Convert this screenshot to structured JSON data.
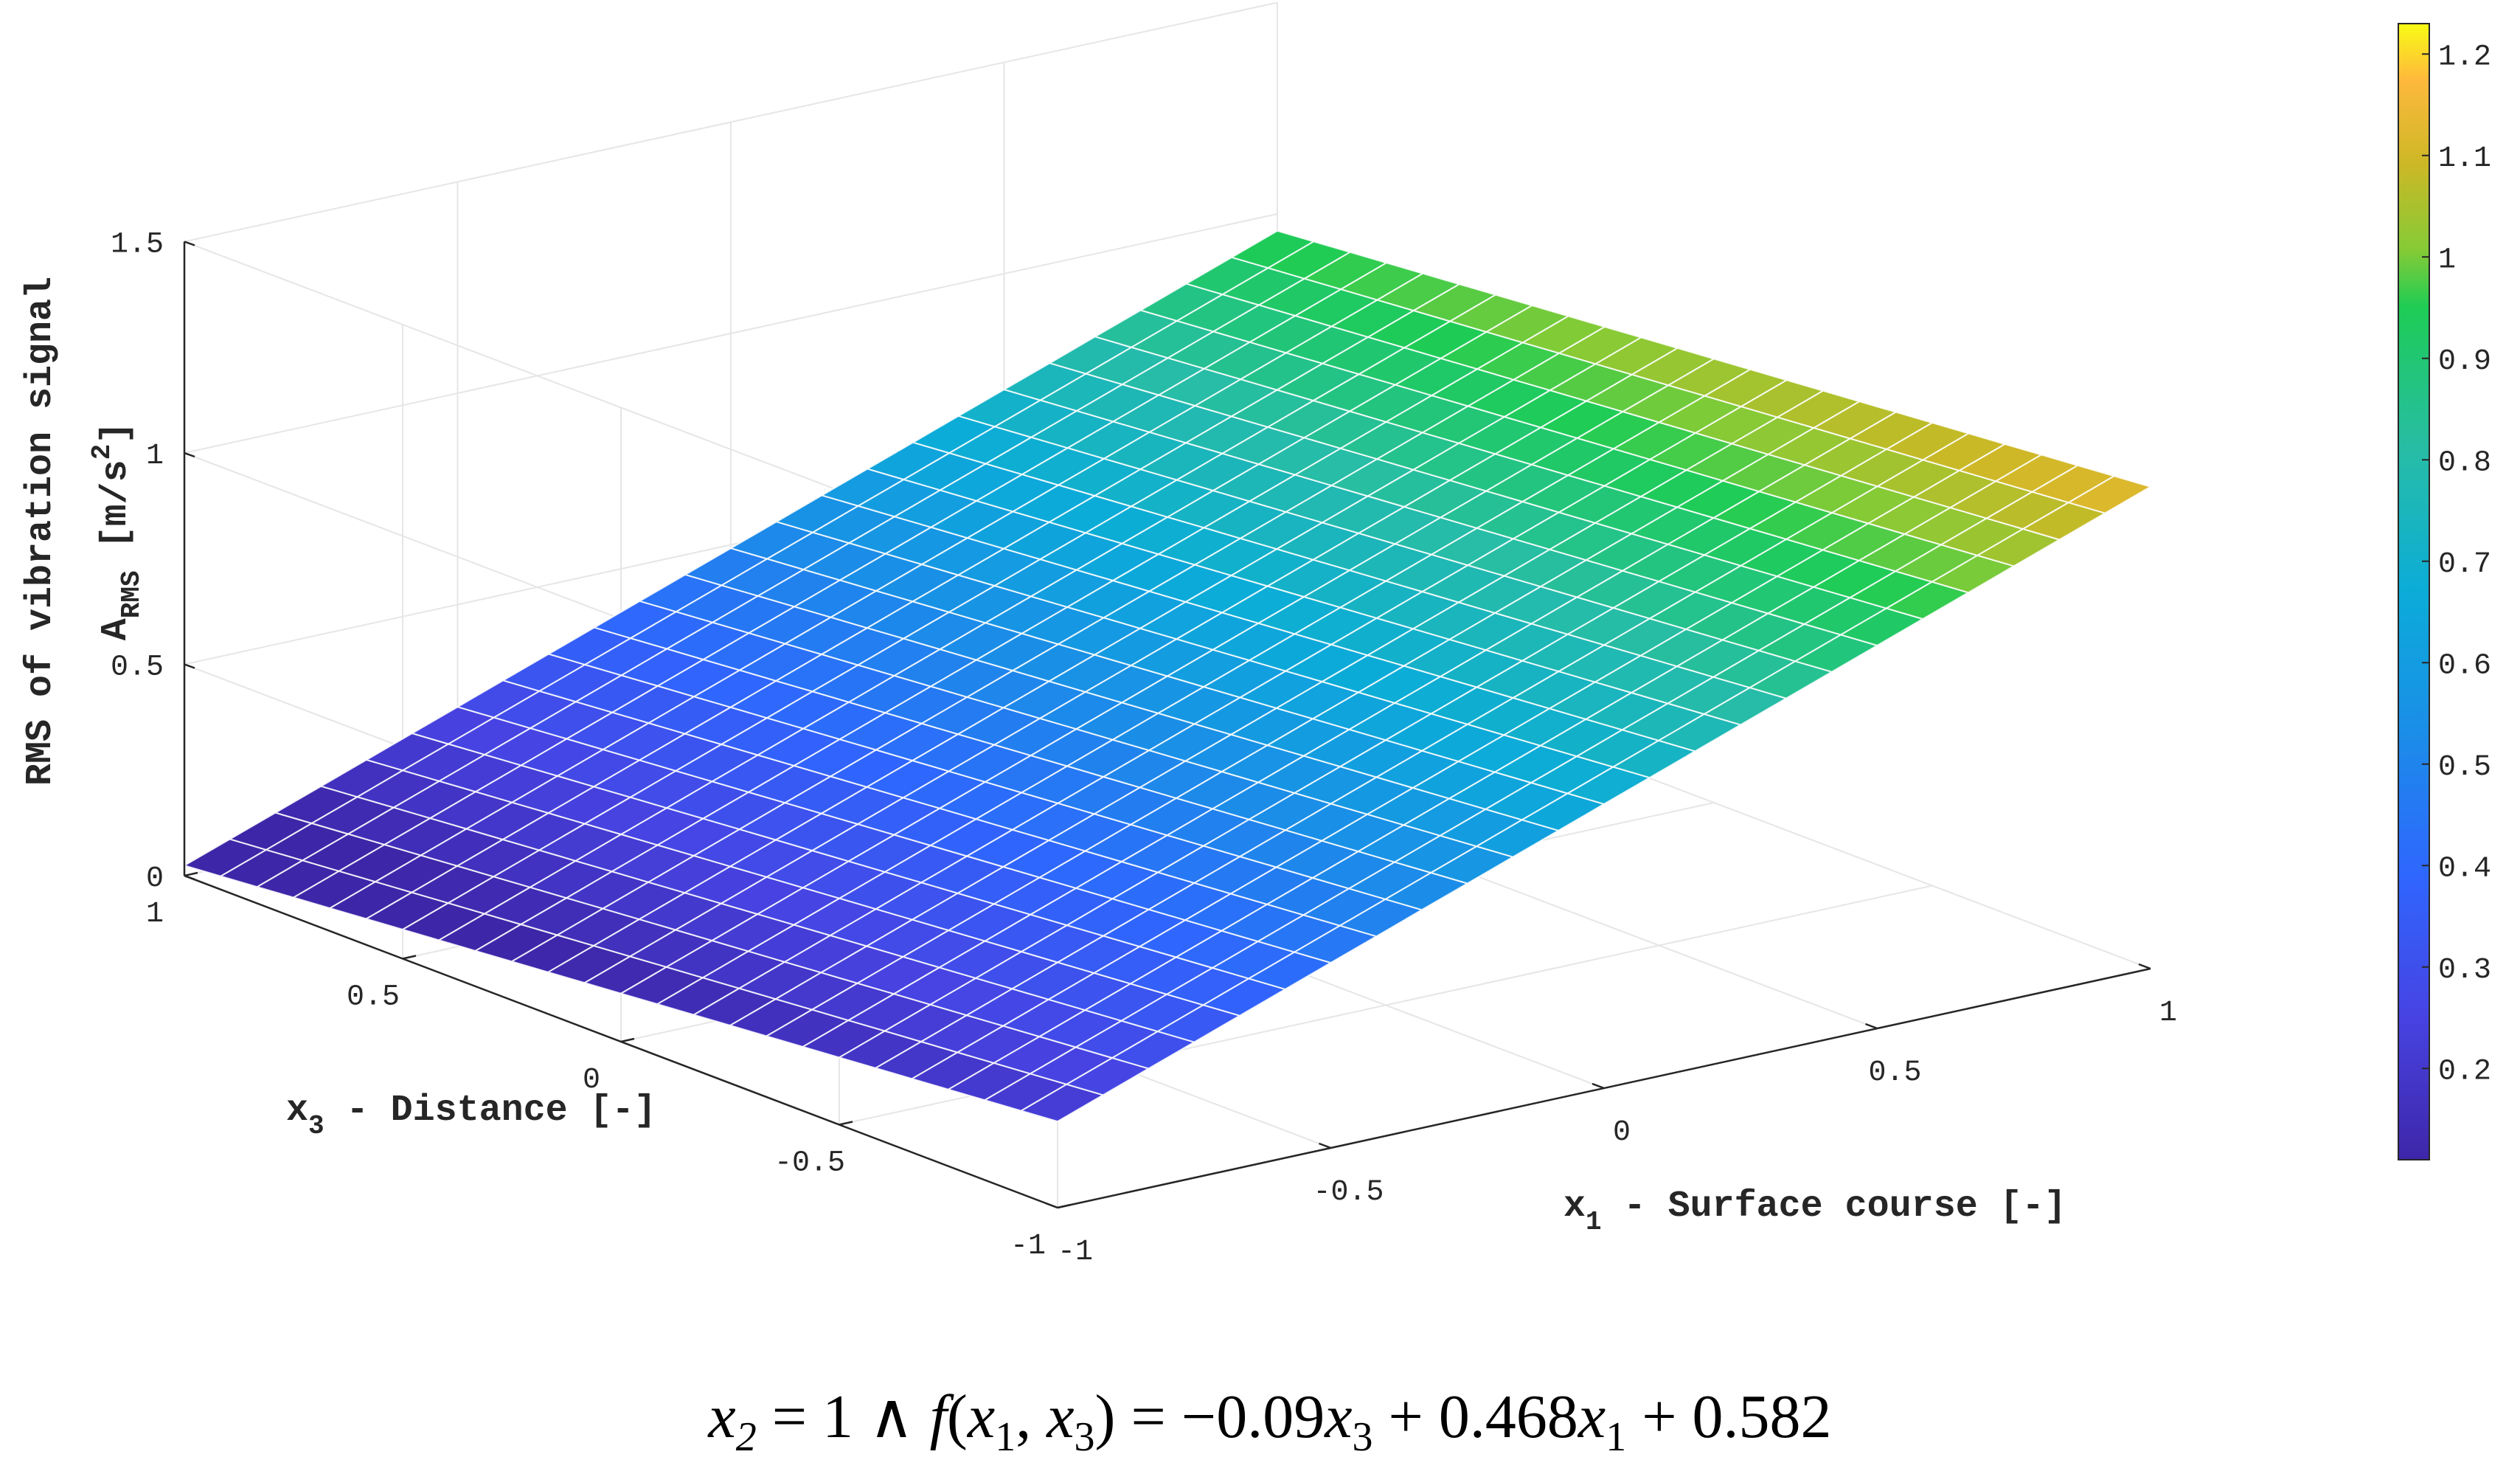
{
  "chart_data": {
    "type": "surface",
    "x1_label": {
      "prefix": "x",
      "sub": "1",
      "suffix": " - Surface course [-]"
    },
    "x3_label": {
      "prefix": "x",
      "sub": "3",
      "suffix": " - Distance [-]"
    },
    "z_label": {
      "line1": "RMS of vibration signal",
      "line2_prefix": "A",
      "line2_sub": "RMS",
      "line2_suffix": " [m/s",
      "line2_sup": "2",
      "line2_end": "]"
    },
    "x1_range": [
      -1,
      1
    ],
    "x3_range": [
      -1,
      1
    ],
    "z_range": [
      0,
      1.5
    ],
    "x1_ticks": [
      "-1",
      "-0.5",
      "0",
      "0.5",
      "1"
    ],
    "x3_ticks": [
      "-1",
      "-0.5",
      "0",
      "0.5",
      "1"
    ],
    "z_ticks": [
      "0",
      "0.5",
      "1",
      "1.5"
    ],
    "colorbar_ticks": [
      "0.2",
      "0.3",
      "0.4",
      "0.5",
      "0.6",
      "0.7",
      "0.8",
      "0.9",
      "1",
      "1.1",
      "1.2"
    ],
    "colorbar_range": [
      0.11,
      1.23
    ],
    "colormap": "parula",
    "grid": true,
    "grid_steps": 24,
    "model": {
      "x2": 1,
      "coef_x3": -0.09,
      "coef_x1": 0.468,
      "intercept": 0.582
    },
    "equation": {
      "part1": "x",
      "sub1": "2",
      "part2": " = 1 ∧ ",
      "part3": "f",
      "part4": "(",
      "part5": "x",
      "sub2": "1",
      "part6": ", ",
      "part7": "x",
      "sub3": "3",
      "part8": ") = −0.09",
      "part9": "x",
      "sub4": "3",
      "part10": " + 0.468",
      "part11": "x",
      "sub5": "1",
      "part12": " + 0.582"
    }
  }
}
